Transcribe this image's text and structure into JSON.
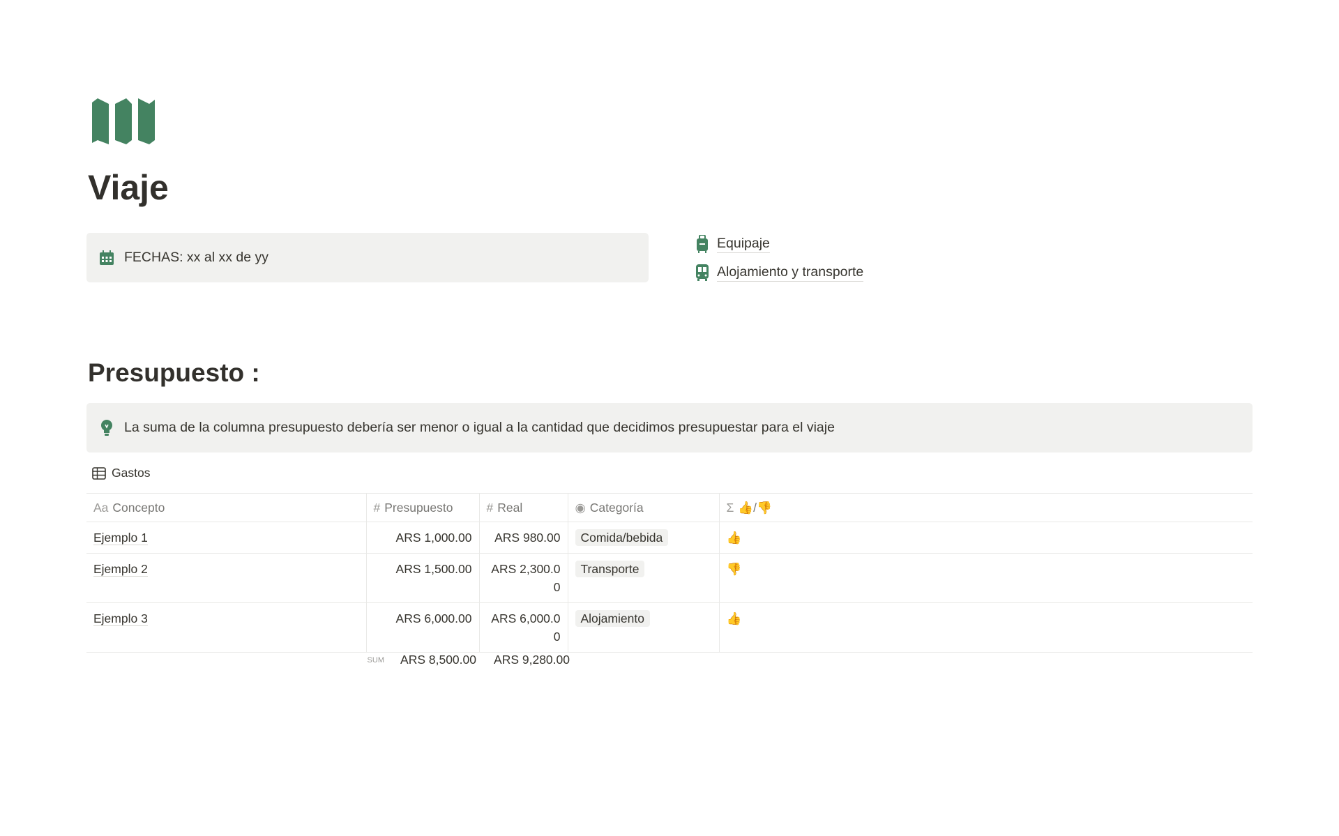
{
  "page": {
    "title": "Viaje",
    "icon": "map-icon",
    "accent": "#448361"
  },
  "dates_callout": {
    "icon": "calendar-icon",
    "text": "FECHAS: xx al xx de yy"
  },
  "links": [
    {
      "icon": "luggage-icon",
      "label": "Equipaje"
    },
    {
      "icon": "bus-icon",
      "label": "Alojamiento y transporte"
    }
  ],
  "section": {
    "heading": "Presupuesto :"
  },
  "tip_callout": {
    "icon": "lightbulb-icon",
    "text": "La suma de la columna presupuesto debería ser menor o igual a la cantidad que decidimos presupuestar para el viaje"
  },
  "database": {
    "title": "Gastos",
    "icon": "table-icon",
    "columns": [
      {
        "icon": "Aa",
        "label": "Concepto"
      },
      {
        "icon": "#",
        "label": "Presupuesto"
      },
      {
        "icon": "#",
        "label": "Real"
      },
      {
        "icon": "select-icon",
        "label": "Categoría"
      },
      {
        "icon": "Σ",
        "label": "👍/👎"
      }
    ],
    "rows": [
      {
        "concepto": "Ejemplo 1",
        "presupuesto": "ARS 1,000.00",
        "real": "ARS 980.00",
        "categoria": "Comida/bebida",
        "status": "👍"
      },
      {
        "concepto": "Ejemplo 2",
        "presupuesto": "ARS 1,500.00",
        "real": "ARS 2,300.00",
        "categoria": "Transporte",
        "status": "👎"
      },
      {
        "concepto": "Ejemplo 3",
        "presupuesto": "ARS 6,000.00",
        "real": "ARS 6,000.00",
        "categoria": "Alojamiento",
        "status": "👍"
      }
    ],
    "footer": {
      "label": "SUM",
      "presupuesto": "ARS 8,500.00",
      "real": "ARS 9,280.00"
    }
  }
}
